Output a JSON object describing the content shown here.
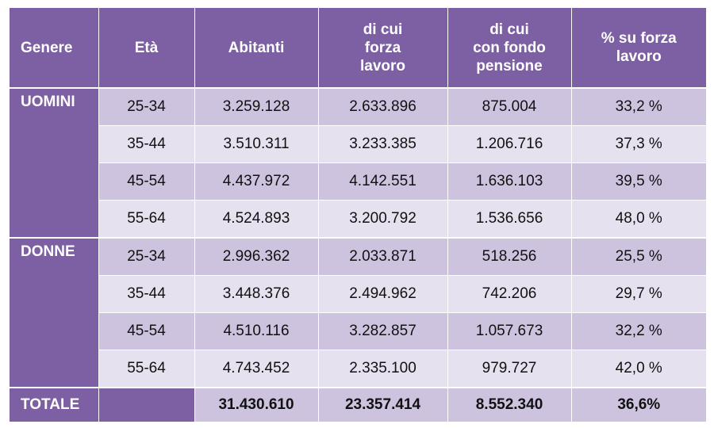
{
  "table": {
    "headers": {
      "genere": "Genere",
      "eta": "Età",
      "abitanti": "Abitanti",
      "forza_lavoro": [
        "di cui",
        "forza",
        "lavoro"
      ],
      "fondo_pensione": [
        "di cui",
        "con fondo",
        "pensione"
      ],
      "percentuale": [
        "% su forza",
        "lavoro"
      ]
    },
    "groups": [
      {
        "label": "UOMINI",
        "rows": [
          {
            "eta": "25-34",
            "abitanti": "3.259.128",
            "forza": "2.633.896",
            "fondo": "875.004",
            "perc": "33,2 %"
          },
          {
            "eta": "35-44",
            "abitanti": "3.510.311",
            "forza": "3.233.385",
            "fondo": "1.206.716",
            "perc": "37,3 %"
          },
          {
            "eta": "45-54",
            "abitanti": "4.437.972",
            "forza": "4.142.551",
            "fondo": "1.636.103",
            "perc": "39,5 %"
          },
          {
            "eta": "55-64",
            "abitanti": "4.524.893",
            "forza": "3.200.792",
            "fondo": "1.536.656",
            "perc": "48,0 %"
          }
        ]
      },
      {
        "label": "DONNE",
        "rows": [
          {
            "eta": "25-34",
            "abitanti": "2.996.362",
            "forza": "2.033.871",
            "fondo": "518.256",
            "perc": "25,5 %"
          },
          {
            "eta": "35-44",
            "abitanti": "3.448.376",
            "forza": "2.494.962",
            "fondo": "742.206",
            "perc": "29,7 %"
          },
          {
            "eta": "45-54",
            "abitanti": "4.510.116",
            "forza": "3.282.857",
            "fondo": "1.057.673",
            "perc": "32,2 %"
          },
          {
            "eta": "55-64",
            "abitanti": "4.743.452",
            "forza": "2.335.100",
            "fondo": "979.727",
            "perc": "42,0 %"
          }
        ]
      }
    ],
    "total": {
      "label": "TOTALE",
      "abitanti": "31.430.610",
      "forza": "23.357.414",
      "fondo": "8.552.340",
      "perc": "36,6%"
    },
    "colors": {
      "header": "#7d5fa3",
      "row_dark": "#cdc3df",
      "row_light": "#e6e1ee"
    }
  }
}
